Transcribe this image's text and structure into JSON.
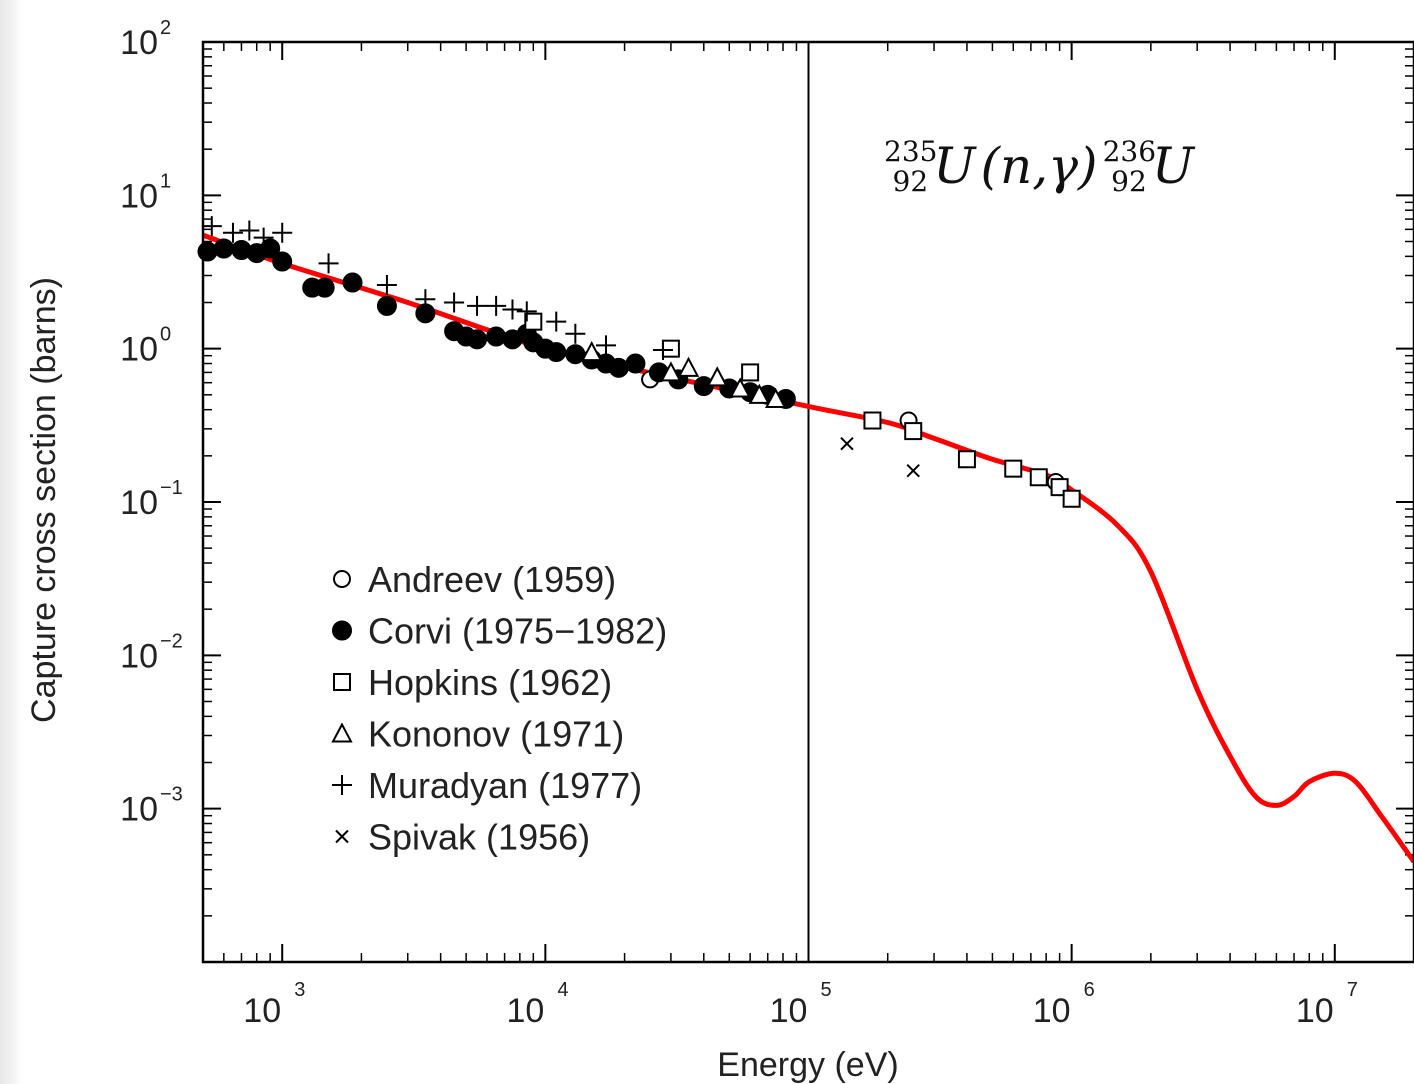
{
  "chart_data": {
    "type": "scatter",
    "xlabel": "Energy (eV)",
    "ylabel": "Capture cross section (barns)",
    "xscale": "log",
    "yscale": "log",
    "xlim": [
      500,
      20000000
    ],
    "ylim": [
      0.0001,
      100
    ],
    "x_ticks": [
      {
        "base": "10",
        "exp": "3",
        "value": 1000
      },
      {
        "base": "10",
        "exp": "4",
        "value": 10000
      },
      {
        "base": "10",
        "exp": "5",
        "value": 100000
      },
      {
        "base": "10",
        "exp": "6",
        "value": 1000000
      },
      {
        "base": "10",
        "exp": "7",
        "value": 10000000
      }
    ],
    "y_ticks": [
      {
        "base": "10",
        "exp": "2",
        "value": 100
      },
      {
        "base": "10",
        "exp": "1",
        "value": 10
      },
      {
        "base": "10",
        "exp": "0",
        "value": 1
      },
      {
        "base": "10",
        "exp": "−1",
        "value": 0.1
      },
      {
        "base": "10",
        "exp": "−2",
        "value": 0.01
      },
      {
        "base": "10",
        "exp": "−3",
        "value": 0.001
      }
    ],
    "reaction_label": {
      "mass1": "235",
      "z1": "92",
      "element1": "U",
      "reaction": "(n,γ)",
      "mass2": "236",
      "z2": "92",
      "element2": "U"
    },
    "vertical_line_x": 100000,
    "grid": false,
    "legend_position": "lower-left",
    "line_color": "#ff0000",
    "evaluated_curve": {
      "x": [
        500,
        1000,
        3000,
        10000,
        30000,
        100000,
        200000,
        300000,
        500000,
        800000,
        1000000,
        1500000,
        2000000,
        3000000,
        4000000,
        5000000,
        6000000,
        7000000,
        8000000,
        10000000,
        12000000,
        15000000,
        20000000
      ],
      "y": [
        5.5,
        3.6,
        2.0,
        1.0,
        0.65,
        0.42,
        0.33,
        0.26,
        0.19,
        0.15,
        0.12,
        0.07,
        0.035,
        0.006,
        0.0022,
        0.0012,
        0.00105,
        0.0012,
        0.0015,
        0.0017,
        0.0015,
        0.0009,
        0.00045
      ]
    },
    "series": [
      {
        "name": "Andreev (1959)",
        "marker": "open-circle",
        "x": [
          25000,
          240000,
          870000,
          900000
        ],
        "y": [
          0.63,
          0.34,
          0.135,
          0.125
        ]
      },
      {
        "name": "Corvi (1975−1982)",
        "marker": "filled-circle",
        "x": [
          520,
          600,
          700,
          800,
          900,
          1000,
          1300,
          1450,
          1850,
          2500,
          3500,
          4500,
          5000,
          5500,
          6500,
          7500,
          8500,
          9000,
          10000,
          11000,
          13000,
          15000,
          17000,
          19000,
          22000,
          27000,
          32000,
          40000,
          50000,
          60000,
          70000,
          82000
        ],
        "y": [
          4.3,
          4.5,
          4.4,
          4.2,
          4.5,
          3.7,
          2.5,
          2.5,
          2.7,
          1.9,
          1.7,
          1.3,
          1.2,
          1.15,
          1.2,
          1.15,
          1.25,
          1.1,
          1.0,
          0.95,
          0.92,
          0.85,
          0.8,
          0.75,
          0.8,
          0.7,
          0.63,
          0.57,
          0.55,
          0.52,
          0.5,
          0.47
        ]
      },
      {
        "name": "Hopkins (1962)",
        "marker": "open-square",
        "x": [
          9000,
          30000,
          60000,
          175000,
          250000,
          400000,
          600000,
          750000,
          900000,
          1000000
        ],
        "y": [
          1.5,
          1.0,
          0.7,
          0.34,
          0.29,
          0.19,
          0.165,
          0.145,
          0.125,
          0.105
        ]
      },
      {
        "name": "Kononov (1971)",
        "marker": "open-triangle",
        "x": [
          15000,
          30000,
          35000,
          45000,
          55000,
          65000,
          75000
        ],
        "y": [
          0.95,
          0.7,
          0.75,
          0.65,
          0.55,
          0.5,
          0.47
        ]
      },
      {
        "name": "Muradyan (1977)",
        "marker": "plus",
        "x": [
          540,
          650,
          750,
          850,
          1000,
          1500,
          2500,
          3500,
          4500,
          5500,
          6500,
          7500,
          8500,
          11000,
          13000,
          17000,
          28000
        ],
        "y": [
          6.3,
          5.7,
          5.9,
          5.3,
          5.7,
          3.6,
          2.6,
          2.1,
          2.0,
          1.9,
          1.9,
          1.8,
          1.75,
          1.5,
          1.25,
          1.05,
          0.98
        ]
      },
      {
        "name": "Spivak (1956)",
        "marker": "cross",
        "x": [
          140000,
          250000
        ],
        "y": [
          0.24,
          0.16
        ]
      }
    ]
  }
}
